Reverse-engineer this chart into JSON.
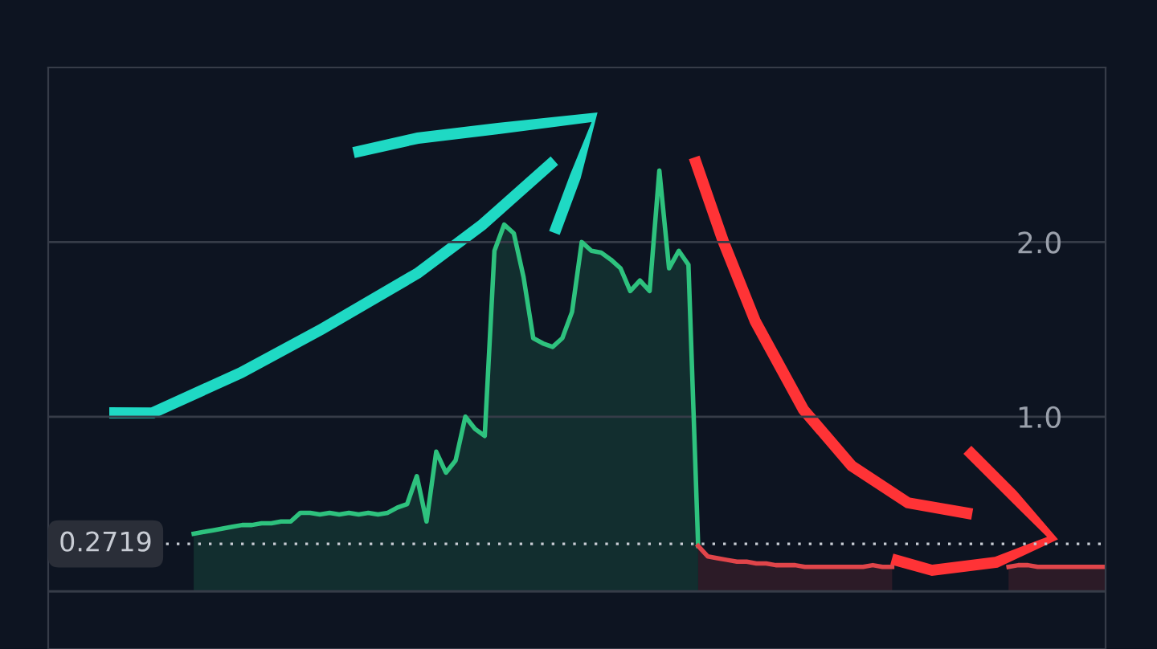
{
  "chart_data": {
    "type": "area",
    "categories": [
      null,
      null,
      null,
      null,
      null,
      null,
      null,
      null,
      null,
      null,
      null,
      null,
      null,
      null,
      null,
      null,
      null,
      null,
      null,
      null,
      null,
      null,
      null,
      null,
      null,
      null,
      null,
      null,
      null,
      null,
      null,
      null,
      null,
      null,
      null,
      null,
      null,
      null,
      null,
      null,
      null,
      null,
      null,
      null,
      null,
      null,
      null,
      null,
      null,
      null,
      null,
      null,
      null,
      null,
      null,
      null,
      null,
      null,
      null,
      null,
      null,
      null,
      null,
      null,
      null,
      null,
      null,
      null,
      null,
      null,
      null,
      null,
      null,
      null,
      null,
      null,
      null,
      null,
      null,
      null,
      null,
      null,
      null,
      null,
      null,
      null,
      null,
      null,
      null,
      null,
      null,
      null,
      null,
      null,
      null,
      null,
      null,
      null,
      null,
      null,
      null,
      null,
      null,
      null,
      null,
      null,
      null,
      null,
      null,
      null
    ],
    "series": [
      {
        "color": "#2ec27e",
        "values": [
          null,
          null,
          null,
          null,
          null,
          null,
          null,
          null,
          null,
          null,
          null,
          null,
          null,
          null,
          null,
          0.33,
          0.34,
          0.35,
          0.36,
          0.37,
          0.38,
          0.38,
          0.39,
          0.39,
          0.4,
          0.4,
          0.45,
          0.45,
          0.44,
          0.45,
          0.44,
          0.45,
          0.44,
          0.45,
          0.44,
          0.45,
          0.48,
          0.5,
          0.66,
          0.4,
          0.8,
          0.68,
          0.75,
          1.0,
          0.93,
          0.89,
          1.95,
          2.1,
          2.05,
          1.8,
          1.45,
          1.42,
          1.4,
          1.45,
          1.6,
          2.0,
          1.95,
          1.94,
          1.9,
          1.85,
          1.72,
          1.78,
          1.72,
          2.41,
          1.85,
          1.95,
          1.87,
          0.26,
          null,
          null,
          null,
          null,
          null,
          null,
          null,
          null,
          null,
          null,
          null,
          null,
          null,
          null,
          null,
          null,
          null,
          null,
          null,
          null,
          null,
          null,
          null,
          null,
          null,
          null,
          null,
          null,
          null,
          null,
          null,
          null,
          null,
          null,
          null,
          null,
          null,
          null,
          null,
          null,
          null,
          null
        ]
      },
      {
        "color": "#e0454a",
        "values": [
          null,
          null,
          null,
          null,
          null,
          null,
          null,
          null,
          null,
          null,
          null,
          null,
          null,
          null,
          null,
          null,
          null,
          null,
          null,
          null,
          null,
          null,
          null,
          null,
          null,
          null,
          null,
          null,
          null,
          null,
          null,
          null,
          null,
          null,
          null,
          null,
          null,
          null,
          null,
          null,
          null,
          null,
          null,
          null,
          null,
          null,
          null,
          null,
          null,
          null,
          null,
          null,
          null,
          null,
          null,
          null,
          null,
          null,
          null,
          null,
          null,
          null,
          null,
          null,
          null,
          null,
          null,
          0.26,
          0.2,
          0.19,
          0.18,
          0.17,
          0.17,
          0.16,
          0.16,
          0.15,
          0.15,
          0.15,
          0.14,
          0.14,
          0.14,
          0.14,
          0.14,
          0.14,
          0.14,
          0.15,
          0.14,
          0.14,
          null,
          null,
          null,
          null,
          null,
          null,
          null,
          null,
          null,
          null,
          null,
          0.14,
          0.15,
          0.15,
          0.14,
          0.14,
          0.14,
          0.14,
          0.14,
          0.14,
          0.14,
          0.14
        ]
      }
    ],
    "ylim": [
      -0.33,
      3.0
    ],
    "yticks": [
      {
        "value": 0,
        "label": null
      },
      {
        "value": 1.0,
        "label": "1.0"
      },
      {
        "value": 2.0,
        "label": "2.0"
      }
    ],
    "grid": "y",
    "ref_lines": [
      {
        "axis": "y",
        "value": 0.2719,
        "label": "0.2719",
        "color": "#c8ccd4",
        "line_style": "dotted"
      }
    ]
  }
}
